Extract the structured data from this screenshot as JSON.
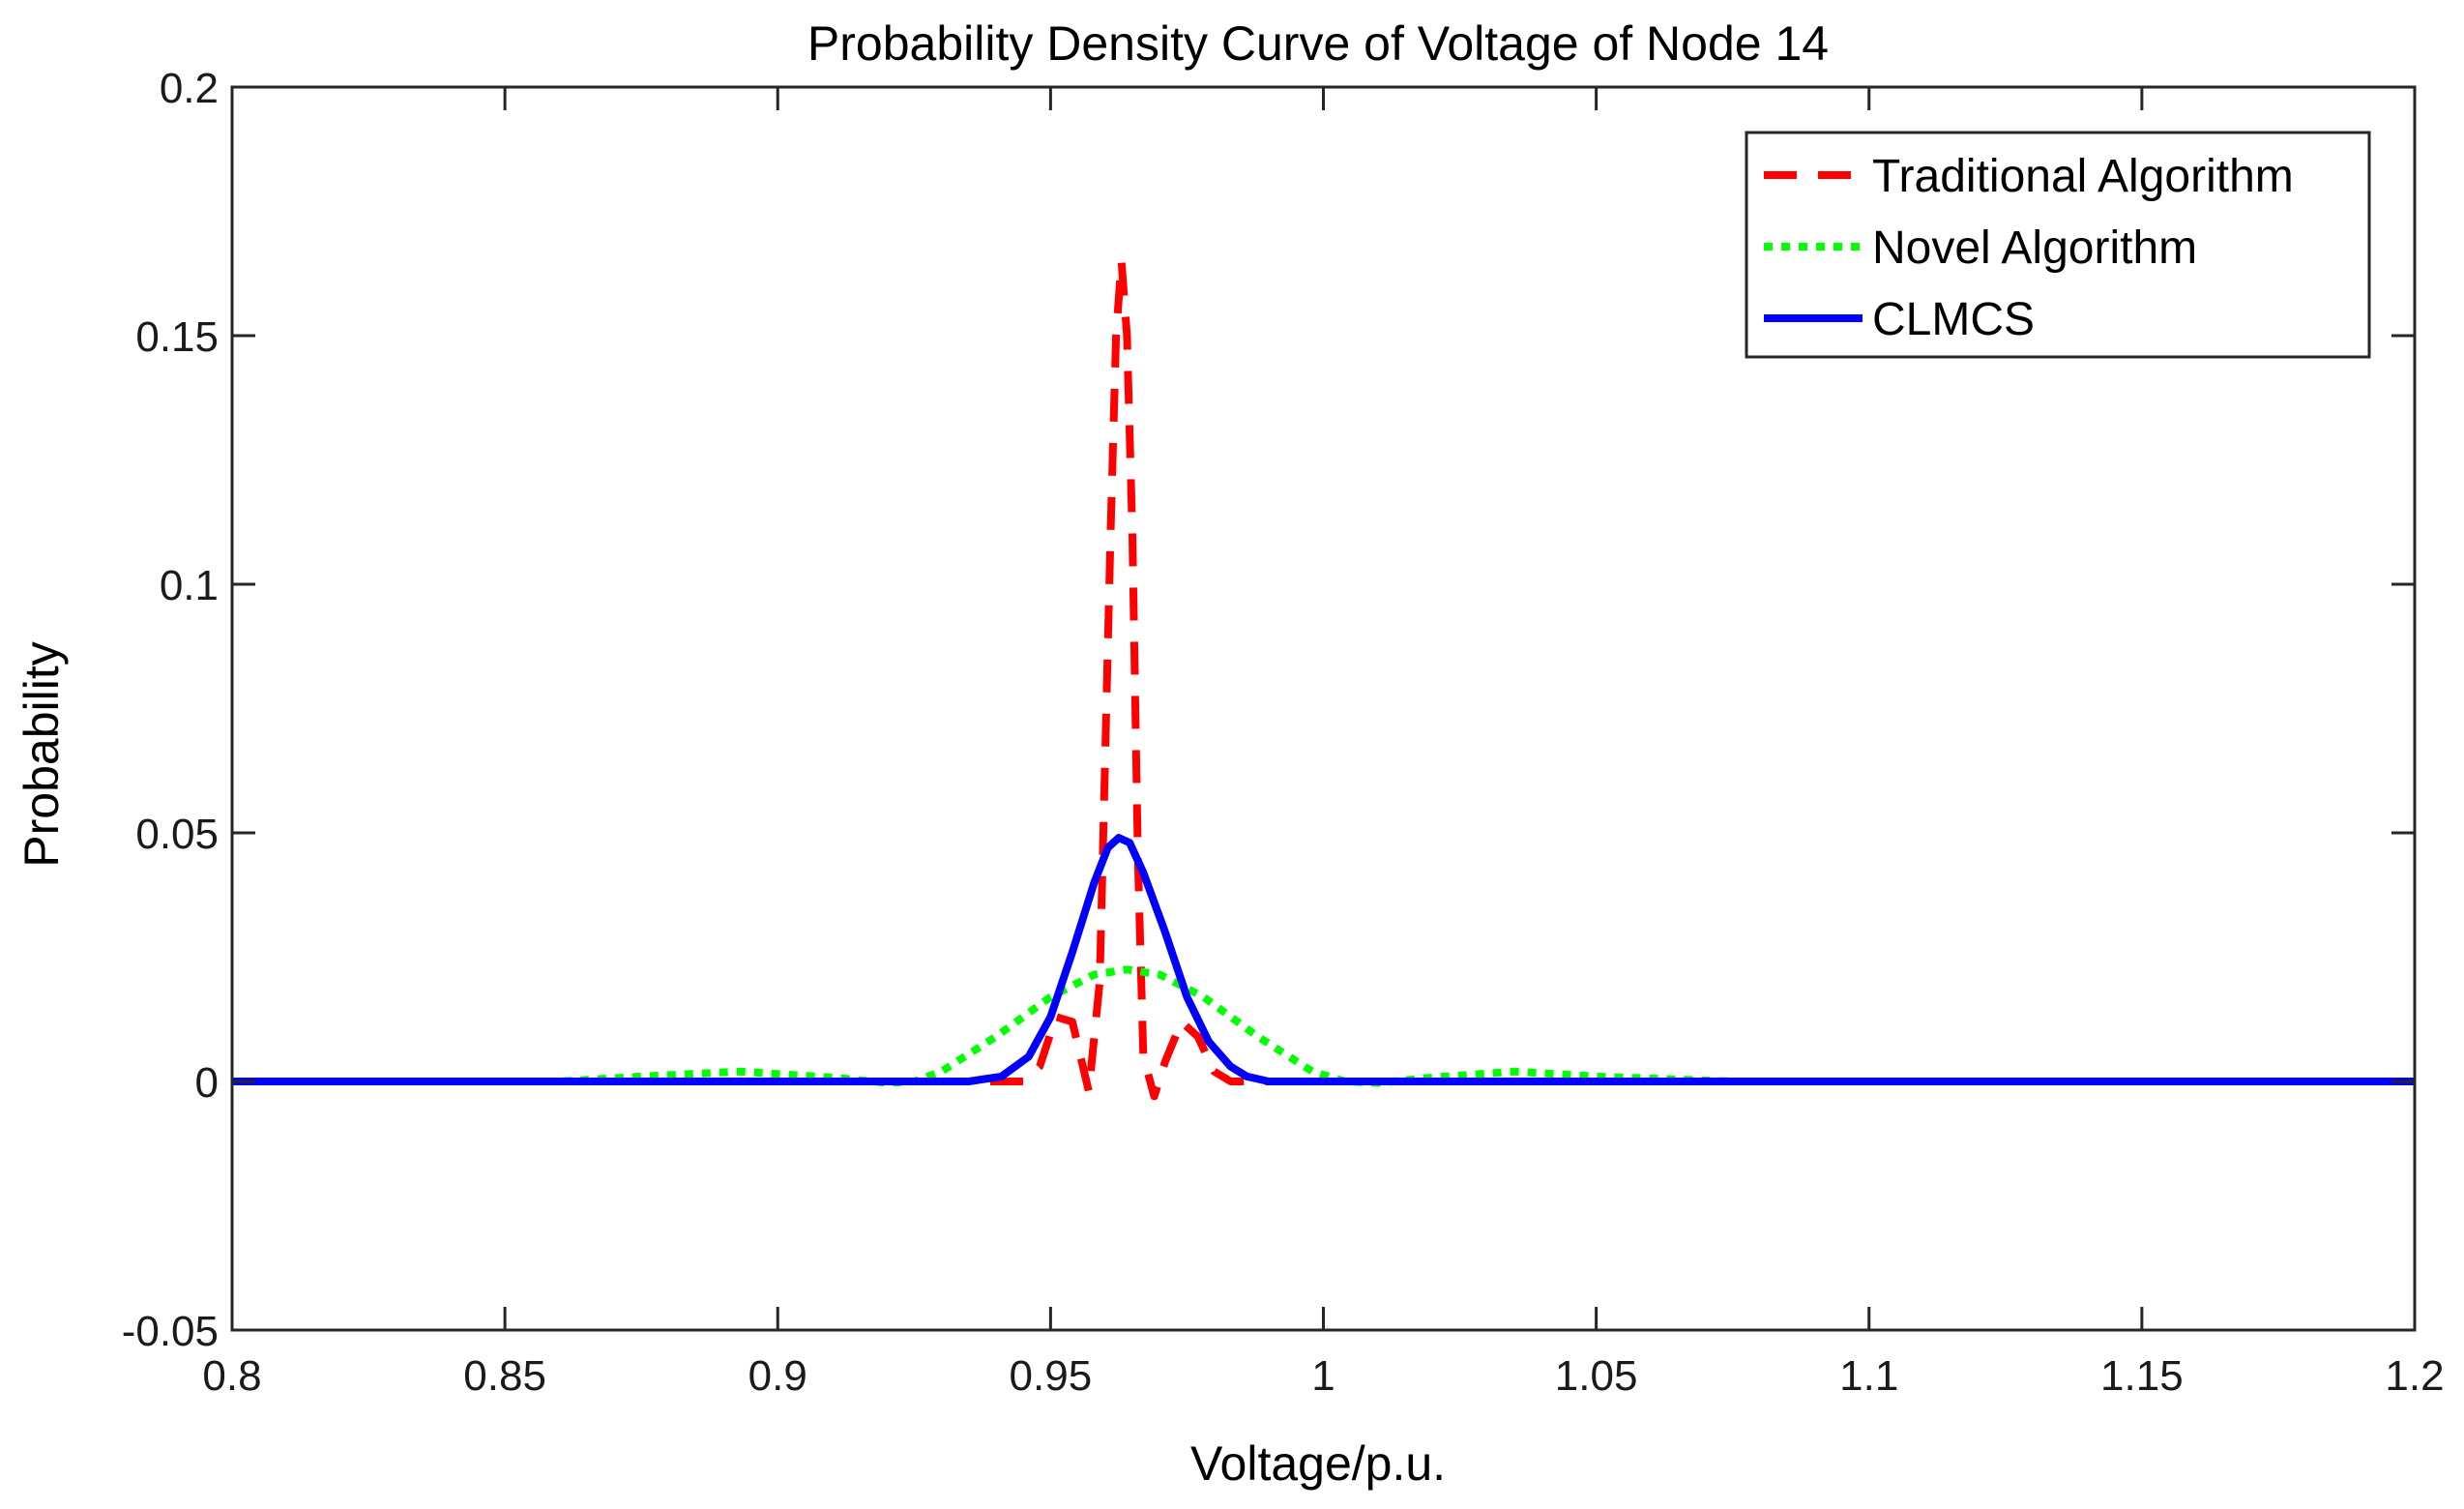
{
  "chart_data": {
    "type": "line",
    "title": "Probability Density Curve of Voltage of Node 14",
    "xlabel": "Voltage/p.u.",
    "ylabel": "Probability",
    "xlim": [
      0.8,
      1.2
    ],
    "ylim": [
      -0.05,
      0.2
    ],
    "xticks": [
      0.8,
      0.85,
      0.9,
      0.95,
      1.0,
      1.05,
      1.1,
      1.15,
      1.2
    ],
    "xtick_labels": [
      "0.8",
      "0.85",
      "0.9",
      "0.95",
      "1",
      "1.05",
      "1.1",
      "1.15",
      "1.2"
    ],
    "yticks": [
      -0.05,
      0,
      0.05,
      0.1,
      0.15,
      0.2
    ],
    "ytick_labels": [
      "-0.05",
      "0",
      "0.05",
      "0.1",
      "0.15",
      "0.2"
    ],
    "grid": false,
    "legend_position": "top-right",
    "series": [
      {
        "name": "Traditional Algorithm",
        "color": "#ff0000",
        "style": "dashed",
        "x": [
          0.8,
          0.94,
          0.945,
          0.948,
          0.951,
          0.954,
          0.957,
          0.959,
          0.961,
          0.962,
          0.963,
          0.964,
          0.965,
          0.966,
          0.967,
          0.969,
          0.971,
          0.974,
          0.977,
          0.98,
          0.983,
          0.987,
          1.2
        ],
        "y": [
          0,
          0,
          0,
          0.003,
          0.013,
          0.012,
          -0.002,
          0.02,
          0.11,
          0.15,
          0.165,
          0.15,
          0.11,
          0.045,
          0.005,
          -0.003,
          0.004,
          0.012,
          0.009,
          0.002,
          0,
          0,
          0
        ]
      },
      {
        "name": "Novel Algorithm",
        "color": "#00ff00",
        "style": "dotted",
        "x": [
          0.8,
          0.86,
          0.875,
          0.893,
          0.91,
          0.92,
          0.925,
          0.93,
          0.94,
          0.95,
          0.958,
          0.964,
          0.97,
          0.978,
          0.988,
          0.998,
          1.004,
          1.01,
          1.02,
          1.035,
          1.05,
          1.075,
          1.2
        ],
        "y": [
          0,
          0,
          0.001,
          0.002,
          0.0008,
          -0.0003,
          0,
          0.002,
          0.009,
          0.017,
          0.0215,
          0.0225,
          0.0215,
          0.017,
          0.009,
          0.002,
          0,
          -0.0003,
          0.0008,
          0.002,
          0.001,
          0,
          0
        ]
      },
      {
        "name": "CLMCS",
        "color": "#0000ff",
        "style": "solid",
        "x": [
          0.8,
          0.935,
          0.941,
          0.946,
          0.95,
          0.954,
          0.958,
          0.9605,
          0.9625,
          0.9645,
          0.967,
          0.971,
          0.975,
          0.979,
          0.983,
          0.986,
          0.99,
          1.2
        ],
        "y": [
          0,
          0,
          0.001,
          0.005,
          0.013,
          0.026,
          0.04,
          0.047,
          0.049,
          0.048,
          0.042,
          0.03,
          0.017,
          0.008,
          0.003,
          0.001,
          0,
          0
        ]
      }
    ]
  }
}
